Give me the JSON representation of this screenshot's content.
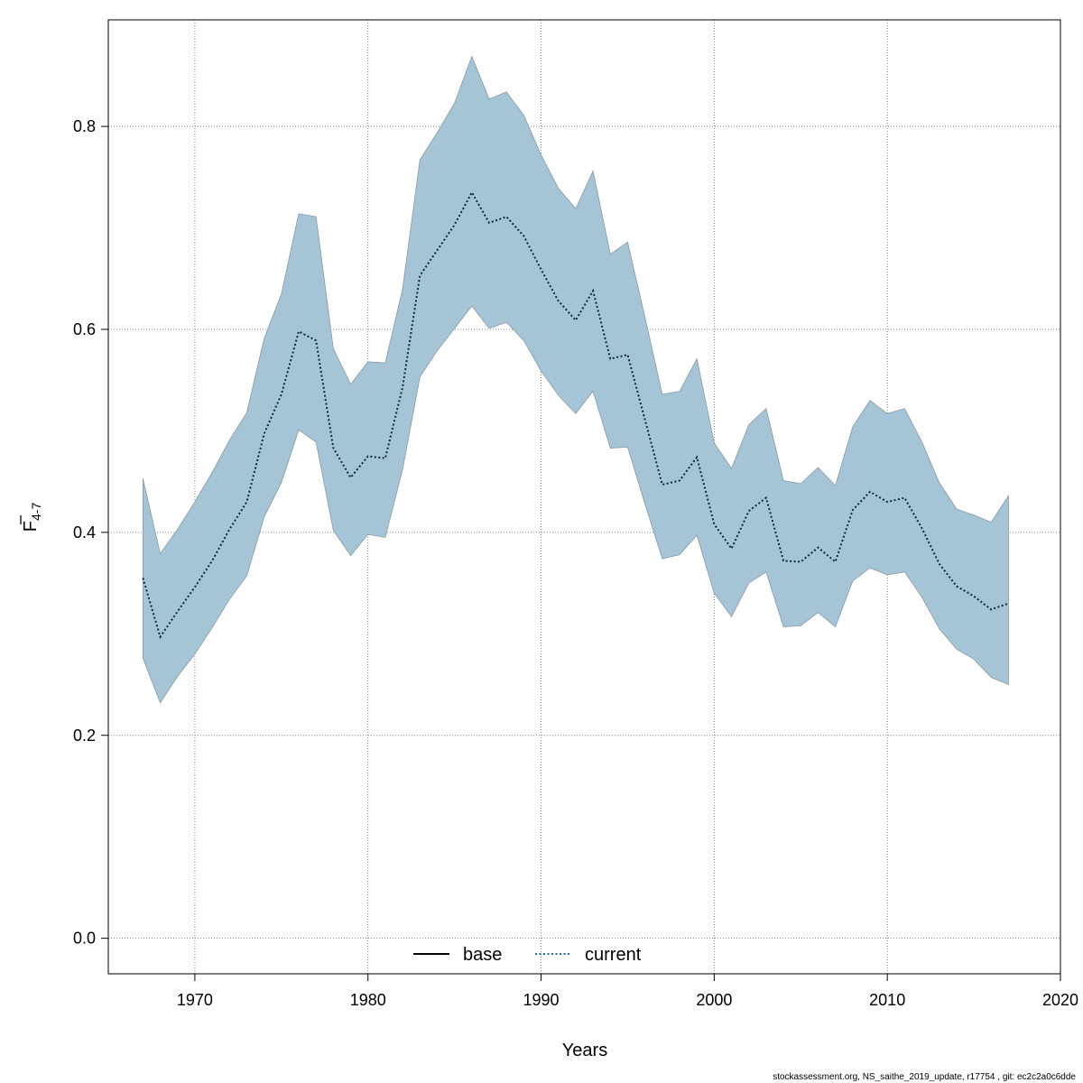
{
  "chart_data": {
    "type": "line",
    "xlabel": "Years",
    "ylabel_main": "F",
    "ylabel_sub": "4-7",
    "xlim": [
      1965,
      2020
    ],
    "ylim": [
      -0.035,
      0.905
    ],
    "xticks": [
      1970,
      1980,
      1990,
      2000,
      2010,
      2020
    ],
    "yticks": [
      0.0,
      0.2,
      0.4,
      0.6,
      0.8
    ],
    "ytick_labels": [
      "0.0",
      "0.2",
      "0.4",
      "0.6",
      "0.8"
    ],
    "grid": true,
    "legend_position": "bottom",
    "legend": [
      {
        "name": "base",
        "style": "solid",
        "color": "#000000"
      },
      {
        "name": "current",
        "style": "dotted",
        "color": "#1f6f9f"
      }
    ],
    "colors": {
      "band": "#a5c4d6",
      "band_edge": "#8a9aa6",
      "current_line": "#0a2a3a"
    },
    "footer": "stockassessment.org, NS_saithe_2019_update, r17754 , git: ec2c2a0c6dde",
    "x": [
      1967,
      1968,
      1969,
      1970,
      1971,
      1972,
      1973,
      1974,
      1975,
      1976,
      1977,
      1978,
      1979,
      1980,
      1981,
      1982,
      1983,
      1984,
      1985,
      1986,
      1987,
      1988,
      1989,
      1990,
      1991,
      1992,
      1993,
      1994,
      1995,
      1996,
      1997,
      1998,
      1999,
      2000,
      2001,
      2002,
      2003,
      2004,
      2005,
      2006,
      2007,
      2008,
      2009,
      2010,
      2011,
      2012,
      2013,
      2014,
      2015,
      2016,
      2017
    ],
    "series": [
      {
        "name": "current",
        "values": [
          0.355,
          0.297,
          0.322,
          0.346,
          0.372,
          0.403,
          0.43,
          0.497,
          0.536,
          0.598,
          0.589,
          0.483,
          0.454,
          0.475,
          0.473,
          0.543,
          0.653,
          0.678,
          0.703,
          0.735,
          0.705,
          0.711,
          0.692,
          0.659,
          0.628,
          0.609,
          0.638,
          0.571,
          0.575,
          0.511,
          0.447,
          0.451,
          0.474,
          0.408,
          0.384,
          0.421,
          0.434,
          0.372,
          0.371,
          0.385,
          0.371,
          0.422,
          0.44,
          0.43,
          0.434,
          0.404,
          0.369,
          0.347,
          0.337,
          0.324,
          0.33
        ]
      }
    ],
    "upper": [
      0.453,
      0.379,
      0.403,
      0.43,
      0.459,
      0.491,
      0.518,
      0.591,
      0.635,
      0.714,
      0.711,
      0.581,
      0.546,
      0.568,
      0.567,
      0.64,
      0.767,
      0.794,
      0.823,
      0.869,
      0.827,
      0.834,
      0.811,
      0.772,
      0.739,
      0.719,
      0.756,
      0.674,
      0.686,
      0.612,
      0.536,
      0.539,
      0.571,
      0.488,
      0.463,
      0.506,
      0.522,
      0.451,
      0.448,
      0.464,
      0.446,
      0.504,
      0.53,
      0.517,
      0.522,
      0.489,
      0.449,
      0.423,
      0.417,
      0.41,
      0.436
    ],
    "lower": [
      0.276,
      0.232,
      0.258,
      0.28,
      0.306,
      0.334,
      0.357,
      0.415,
      0.449,
      0.501,
      0.489,
      0.402,
      0.377,
      0.398,
      0.395,
      0.462,
      0.553,
      0.579,
      0.601,
      0.623,
      0.601,
      0.607,
      0.589,
      0.559,
      0.535,
      0.517,
      0.539,
      0.483,
      0.484,
      0.428,
      0.374,
      0.378,
      0.397,
      0.34,
      0.317,
      0.35,
      0.361,
      0.307,
      0.308,
      0.321,
      0.307,
      0.352,
      0.365,
      0.358,
      0.361,
      0.336,
      0.305,
      0.285,
      0.275,
      0.257,
      0.25
    ]
  }
}
